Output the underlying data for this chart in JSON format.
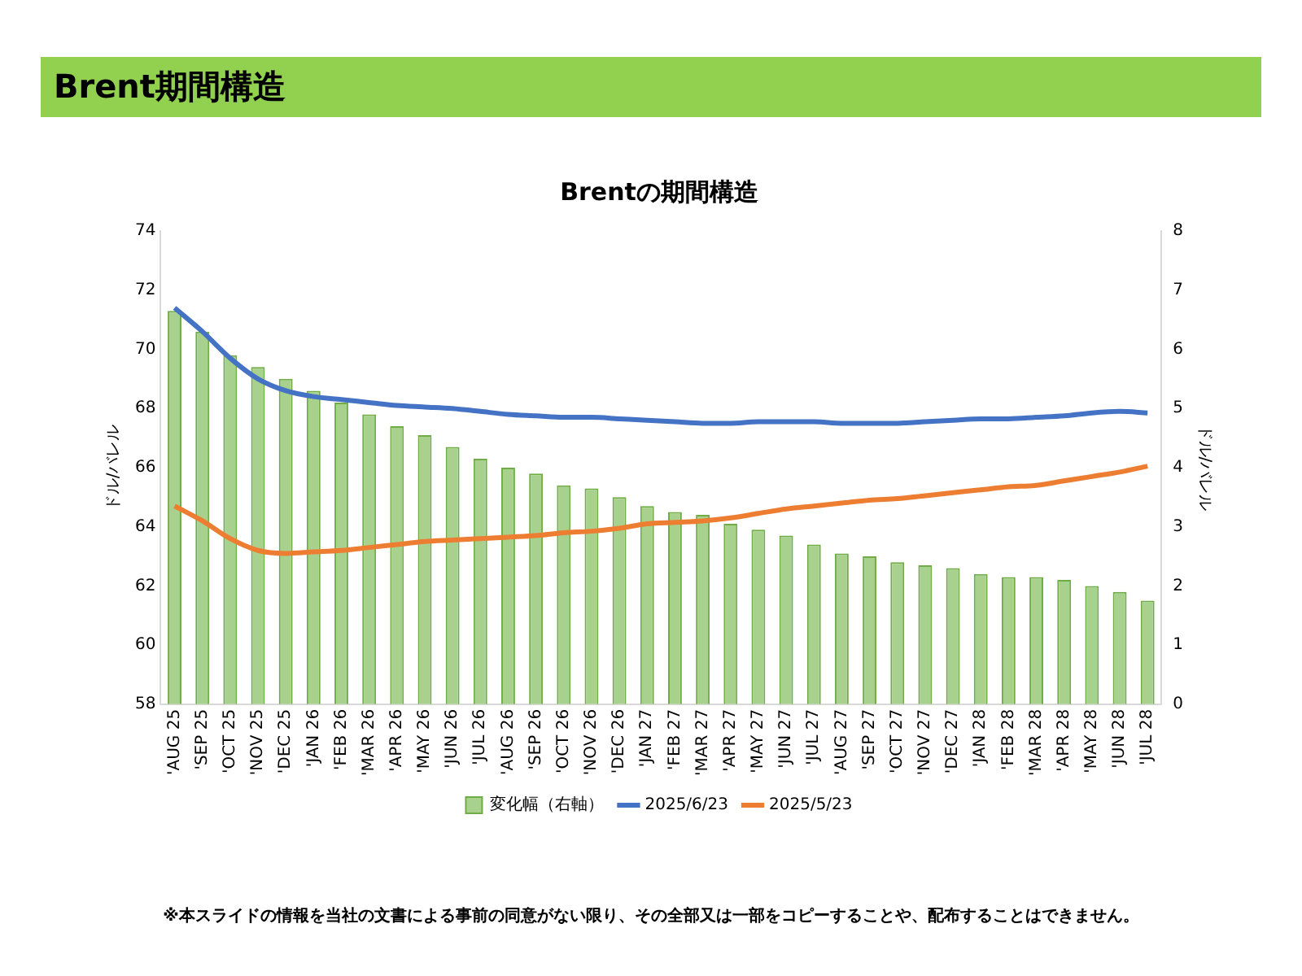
{
  "chart_data": {
    "type": "line",
    "title": "Brent期間構造",
    "subtitle": "Brentの期間構造",
    "ylabel": "ドル/バレル",
    "y2label": "ドル/バレル",
    "categories": [
      "'AUG 25",
      "'SEP 25",
      "'OCT 25",
      "'NOV 25",
      "'DEC 25",
      "'JAN 26",
      "'FEB 26",
      "'MAR 26",
      "'APR 26",
      "'MAY 26",
      "'JUN 26",
      "'JUL 26",
      "'AUG 26",
      "'SEP 26",
      "'OCT 26",
      "'NOV 26",
      "'DEC 26",
      "'JAN 27",
      "'FEB 27",
      "'MAR 27",
      "'APR 27",
      "'MAY 27",
      "'JUN 27",
      "'JUL 27",
      "'AUG 27",
      "'SEP 27",
      "'OCT 27",
      "'NOV 27",
      "'DEC 27",
      "'JAN 28",
      "'FEB 28",
      "'MAR 28",
      "'APR 28",
      "'MAY 28",
      "'JUN 28",
      "'JUL 28"
    ],
    "series": [
      {
        "name": "変化幅（右軸）",
        "type": "bar",
        "axis": "y2",
        "color": "#a9d18e",
        "values": [
          6.65,
          6.3,
          5.9,
          5.7,
          5.5,
          5.3,
          5.1,
          4.9,
          4.7,
          4.55,
          4.35,
          4.15,
          4.0,
          3.9,
          3.7,
          3.65,
          3.5,
          3.35,
          3.25,
          3.2,
          3.05,
          2.95,
          2.85,
          2.7,
          2.55,
          2.5,
          2.4,
          2.35,
          2.3,
          2.2,
          2.15,
          2.15,
          2.1,
          2.0,
          1.9,
          1.75
        ]
      },
      {
        "name": "2025/6/23",
        "color": "#4472c4",
        "values": [
          71.4,
          70.6,
          69.7,
          69.0,
          68.6,
          68.4,
          68.3,
          68.2,
          68.1,
          68.05,
          68.0,
          67.9,
          67.8,
          67.75,
          67.7,
          67.7,
          67.65,
          67.6,
          67.55,
          67.5,
          67.5,
          67.55,
          67.55,
          67.55,
          67.5,
          67.5,
          67.5,
          67.55,
          67.6,
          67.65,
          67.65,
          67.7,
          67.75,
          67.85,
          67.9,
          67.85
        ]
      },
      {
        "name": "2025/5/23",
        "color": "#ed7d31",
        "values": [
          64.7,
          64.2,
          63.6,
          63.2,
          63.1,
          63.15,
          63.2,
          63.3,
          63.4,
          63.5,
          63.55,
          63.6,
          63.65,
          63.7,
          63.8,
          63.85,
          63.95,
          64.1,
          64.15,
          64.2,
          64.3,
          64.45,
          64.6,
          64.7,
          64.8,
          64.9,
          64.95,
          65.05,
          65.15,
          65.25,
          65.35,
          65.4,
          65.55,
          65.7,
          65.85,
          66.05
        ]
      }
    ],
    "ylim": [
      58,
      74
    ],
    "yticks": [
      58,
      60,
      62,
      64,
      66,
      68,
      70,
      72,
      74
    ],
    "y2lim": [
      0,
      8
    ],
    "y2ticks": [
      0,
      1,
      2,
      3,
      4,
      5,
      6,
      7,
      8
    ],
    "grid": false,
    "legend": "bottom",
    "annotations": [
      "※本スライドの情報を当社の文書による事前の同意がない限り、その全部又は一部をコピーすることや、配布することはできません。"
    ]
  }
}
